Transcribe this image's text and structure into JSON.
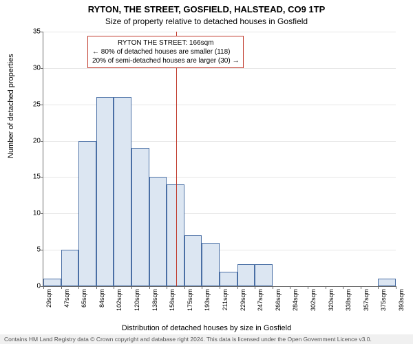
{
  "title_main": "RYTON, THE STREET, GOSFIELD, HALSTEAD, CO9 1TP",
  "title_sub": "Size of property relative to detached houses in Gosfield",
  "ylabel": "Number of detached properties",
  "xlabel": "Distribution of detached houses by size in Gosfield",
  "footer_text": "Contains HM Land Registry data © Crown copyright and database right 2024. This data is licensed under the Open Government Licence v3.0.",
  "chart": {
    "type": "histogram",
    "ylim": [
      0,
      35
    ],
    "ytick_step": 5,
    "yticks": [
      0,
      5,
      10,
      15,
      20,
      25,
      30,
      35
    ],
    "xticks": [
      "29sqm",
      "47sqm",
      "65sqm",
      "84sqm",
      "102sqm",
      "120sqm",
      "138sqm",
      "156sqm",
      "175sqm",
      "193sqm",
      "211sqm",
      "229sqm",
      "247sqm",
      "266sqm",
      "284sqm",
      "302sqm",
      "320sqm",
      "338sqm",
      "357sqm",
      "375sqm",
      "393sqm"
    ],
    "bar_values": [
      1,
      5,
      20,
      26,
      26,
      19,
      15,
      14,
      7,
      6,
      2,
      3,
      3,
      0,
      0,
      0,
      0,
      0,
      0,
      1
    ],
    "bar_fill": "#dce6f2",
    "bar_border": "#4a6fa5",
    "grid_color": "#e6e6e6",
    "ref_line_value": 166,
    "ref_line_color": "#c0392b",
    "x_range": [
      29,
      393
    ]
  },
  "annotation": {
    "line1": "RYTON THE STREET: 166sqm",
    "line2": "← 80% of detached houses are smaller (118)",
    "line3": "20% of semi-detached houses are larger (30) →",
    "border_color": "#c0392b"
  }
}
